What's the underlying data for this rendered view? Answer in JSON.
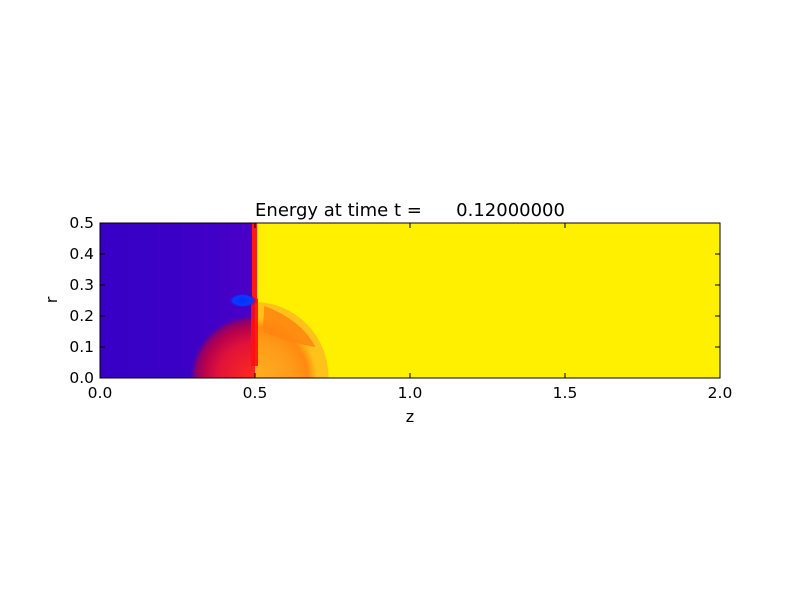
{
  "chart_data": {
    "type": "heatmap",
    "title": "Energy at time t =      0.12000000",
    "xlabel": "z",
    "ylabel": "r",
    "xlim": [
      0.0,
      2.0
    ],
    "ylim": [
      0.0,
      0.5
    ],
    "xticks": [
      "0.0",
      "0.5",
      "1.0",
      "1.5",
      "2.0"
    ],
    "yticks": [
      "0.0",
      "0.1",
      "0.2",
      "0.3",
      "0.4",
      "0.5"
    ],
    "grid": false,
    "colormap": "gnuplot (purple-blue → red → orange → yellow)",
    "regions": [
      {
        "name": "low-energy region",
        "z_range": [
          0.0,
          0.5
        ],
        "r_range": [
          0.0,
          0.5
        ],
        "color": "#3a00c8"
      },
      {
        "name": "high-energy region",
        "z_range": [
          0.5,
          2.0
        ],
        "r_range": [
          0.0,
          0.5
        ],
        "color": "#fff000"
      },
      {
        "name": "interface",
        "z": 0.5,
        "r_range": [
          0.24,
          0.5
        ],
        "color": "#ff1a1a"
      },
      {
        "name": "bubble",
        "center_z": 0.5,
        "radius": 0.25,
        "inner_color": "#c8003c",
        "outer_color": "#ff9a1a"
      },
      {
        "name": "vortex spot",
        "z": 0.46,
        "r": 0.25,
        "color": "#0a3cff"
      }
    ]
  }
}
